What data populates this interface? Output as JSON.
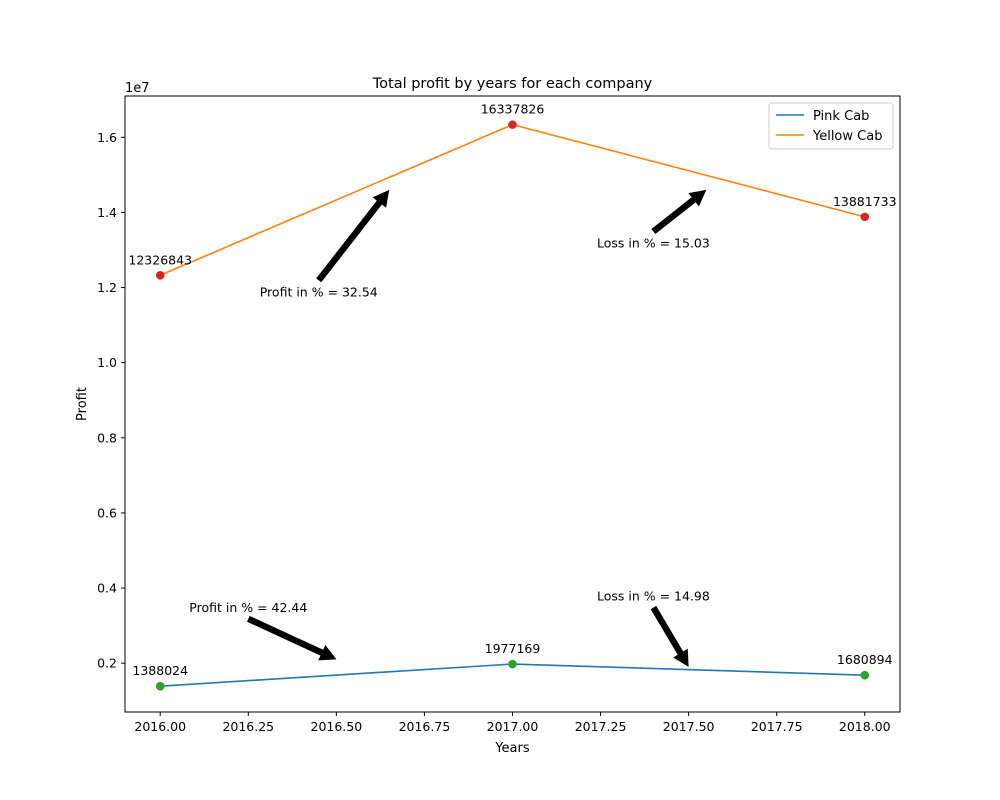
{
  "chart_data": {
    "type": "line",
    "title": "Total profit by years for each company",
    "xlabel": "Years",
    "ylabel": "Profit",
    "y_offset_label": "1e7",
    "xlim": [
      2015.9,
      2018.1
    ],
    "ylim": [
      700000,
      17100000
    ],
    "x_ticks": [
      2016.0,
      2016.25,
      2016.5,
      2016.75,
      2017.0,
      2017.25,
      2017.5,
      2017.75,
      2018.0
    ],
    "x_tick_labels": [
      "2016.00",
      "2016.25",
      "2016.50",
      "2016.75",
      "2017.00",
      "2017.25",
      "2017.50",
      "2017.75",
      "2018.00"
    ],
    "y_ticks": [
      2000000,
      4000000,
      6000000,
      8000000,
      10000000,
      12000000,
      14000000,
      16000000
    ],
    "y_tick_labels": [
      "0.2",
      "0.4",
      "0.6",
      "0.8",
      "1.0",
      "1.2",
      "1.4",
      "1.6"
    ],
    "grid": false,
    "legend_position": "top-right",
    "x": [
      2016,
      2017,
      2018
    ],
    "series": [
      {
        "name": "Pink Cab",
        "color": "#1f77b4",
        "marker_color": "#2ca02c",
        "values": [
          1388024,
          1977169,
          1680894
        ],
        "point_labels": [
          "1388024",
          "1977169",
          "1680894"
        ]
      },
      {
        "name": "Yellow Cab",
        "color": "#ff7f0e",
        "marker_color": "#d62728",
        "values": [
          12326843,
          16337826,
          13881733
        ],
        "point_labels": [
          "12326843",
          "16337826",
          "13881733"
        ]
      }
    ],
    "annotations": [
      {
        "text": "Profit in % = 32.54",
        "text_at": [
          2016.45,
          11900000
        ],
        "arrow_tip": [
          2016.65,
          14600000
        ]
      },
      {
        "text": "Loss in % = 15.03",
        "text_at": [
          2017.4,
          13200000
        ],
        "arrow_tip": [
          2017.55,
          14600000
        ]
      },
      {
        "text": "Profit in % = 42.44",
        "text_at": [
          2016.25,
          3500000
        ],
        "arrow_tip": [
          2016.5,
          2100000
        ]
      },
      {
        "text": "Loss in % = 14.98",
        "text_at": [
          2017.4,
          3800000
        ],
        "arrow_tip": [
          2017.5,
          1900000
        ]
      }
    ]
  }
}
